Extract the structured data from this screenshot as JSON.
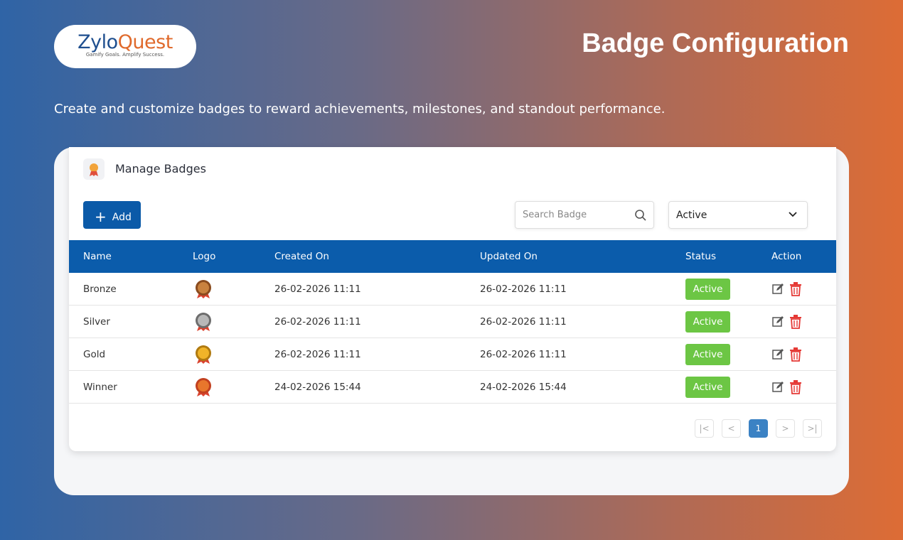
{
  "header": {
    "logo": {
      "parts": [
        "Zylo",
        "Quest"
      ],
      "tagline": "Gamify Goals. Amplify Success."
    },
    "title": "Badge Configuration",
    "subtitle": "Create and customize badges to reward achievements, milestones, and standout performance."
  },
  "panel": {
    "title": "Manage Badges",
    "add_button": "Add",
    "search_placeholder": "Search Badge",
    "status_filter": "Active"
  },
  "table": {
    "columns": [
      "Name",
      "Logo",
      "Created On",
      "Updated On",
      "Status",
      "Action"
    ],
    "rows": [
      [
        "Bronze",
        "26-02-2026 11:11",
        "26-02-2026 11:11",
        "Active"
      ],
      [
        "Silver",
        "26-02-2026 11:11",
        "26-02-2026 11:11",
        "Active"
      ],
      [
        "Gold",
        "26-02-2026 11:11",
        "26-02-2026 11:11",
        "Active"
      ],
      [
        "Winner",
        "24-02-2026 15:44",
        "24-02-2026 15:44",
        "Active"
      ]
    ]
  },
  "pagination": {
    "current_page": "1"
  }
}
